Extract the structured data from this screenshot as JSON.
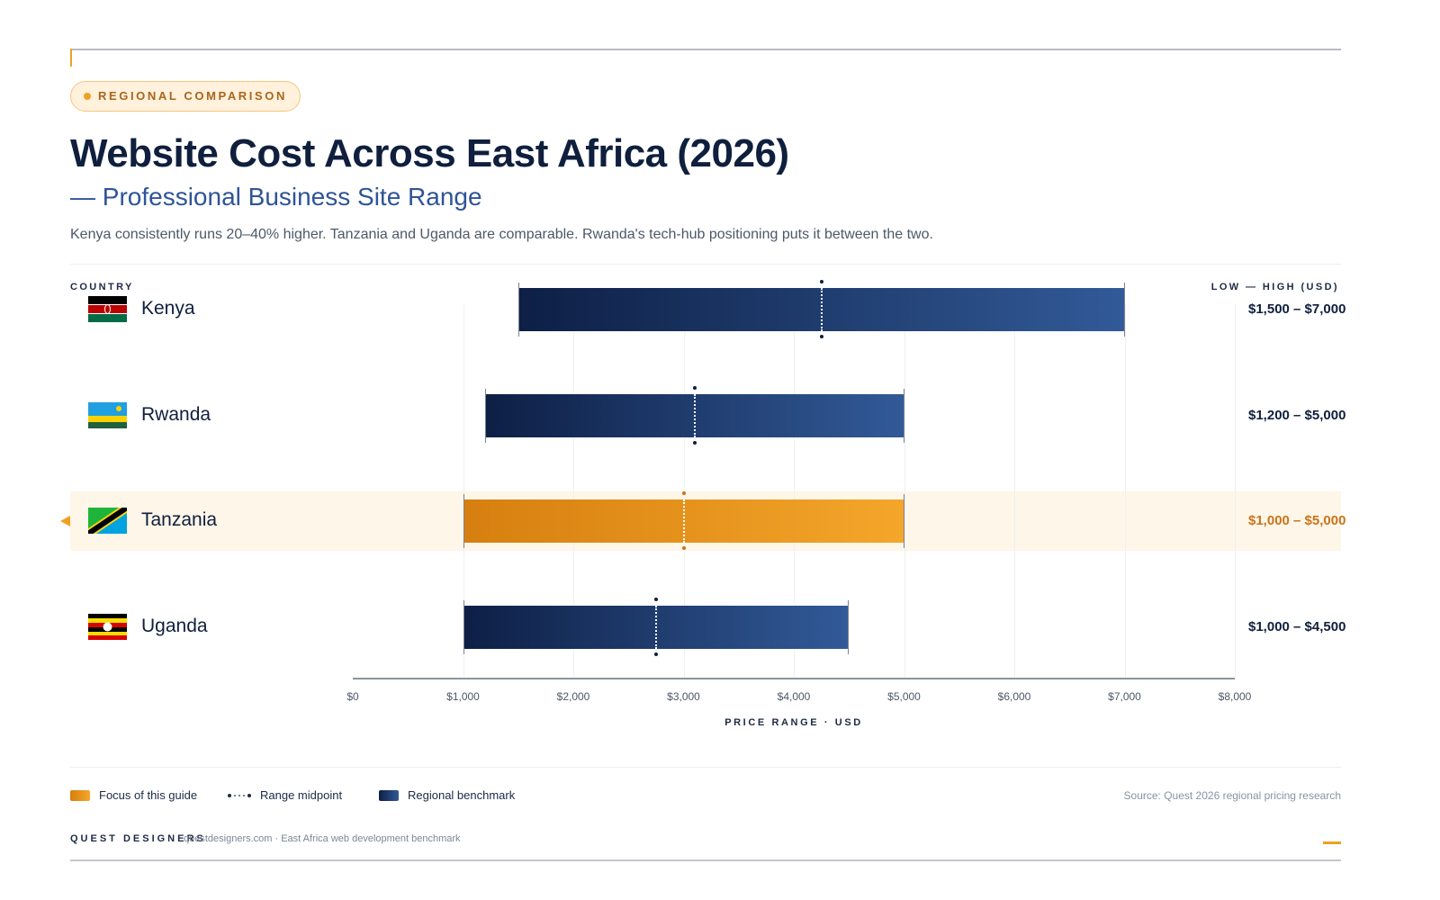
{
  "badge": "REGIONAL COMPARISON",
  "title": "Website Cost Across East Africa (2026)",
  "subtitle": "— Professional Business Site Range",
  "description": "Kenya consistently runs 20–40% higher. Tanzania and Uganda are comparable. Rwanda's tech-hub positioning puts it between the two.",
  "colors": {
    "accent": "#f0a020",
    "navy": "#0f1f3d",
    "benchmark_start": "#0d1f45",
    "benchmark_end": "#325a98",
    "focus_start": "#d67f10",
    "focus_end": "#f4a62a",
    "highlight_band": "#fef6e8"
  },
  "chart_data": {
    "type": "bar",
    "subtype": "range",
    "orientation": "horizontal",
    "column_left": "COUNTRY",
    "column_right": "LOW — HIGH (USD)",
    "xlabel": "PRICE RANGE · USD",
    "xlim": [
      0,
      8000
    ],
    "xticks": [
      0,
      1000,
      2000,
      3000,
      4000,
      5000,
      6000,
      7000,
      8000
    ],
    "xtick_labels": [
      "$0",
      "$1,000",
      "$2,000",
      "$3,000",
      "$4,000",
      "$5,000",
      "$6,000",
      "$7,000",
      "$8,000"
    ],
    "grid": true,
    "rows": [
      {
        "country": "Kenya",
        "flag": "kenya-flag",
        "low": 1500,
        "high": 7000,
        "midpoint": 4250,
        "label": "$1,500 – $7,000",
        "focus": false
      },
      {
        "country": "Rwanda",
        "flag": "rwanda-flag",
        "low": 1200,
        "high": 5000,
        "midpoint": 3100,
        "label": "$1,200 – $5,000",
        "focus": false
      },
      {
        "country": "Tanzania",
        "flag": "tanzania-flag",
        "low": 1000,
        "high": 5000,
        "midpoint": 3000,
        "label": "$1,000 – $5,000",
        "focus": true
      },
      {
        "country": "Uganda",
        "flag": "uganda-flag",
        "low": 1000,
        "high": 4500,
        "midpoint": 2750,
        "label": "$1,000 – $4,500",
        "focus": false
      }
    ],
    "legend": [
      {
        "label": "Focus of this guide"
      },
      {
        "label": "Range midpoint"
      },
      {
        "label": "Regional benchmark"
      }
    ],
    "legend_placement": "bottom-left"
  },
  "source": "Source: Quest 2026 regional pricing research",
  "footer": {
    "brand": "QUEST DESIGNERS",
    "note": "questdesigners.com · East Africa web development benchmark"
  }
}
